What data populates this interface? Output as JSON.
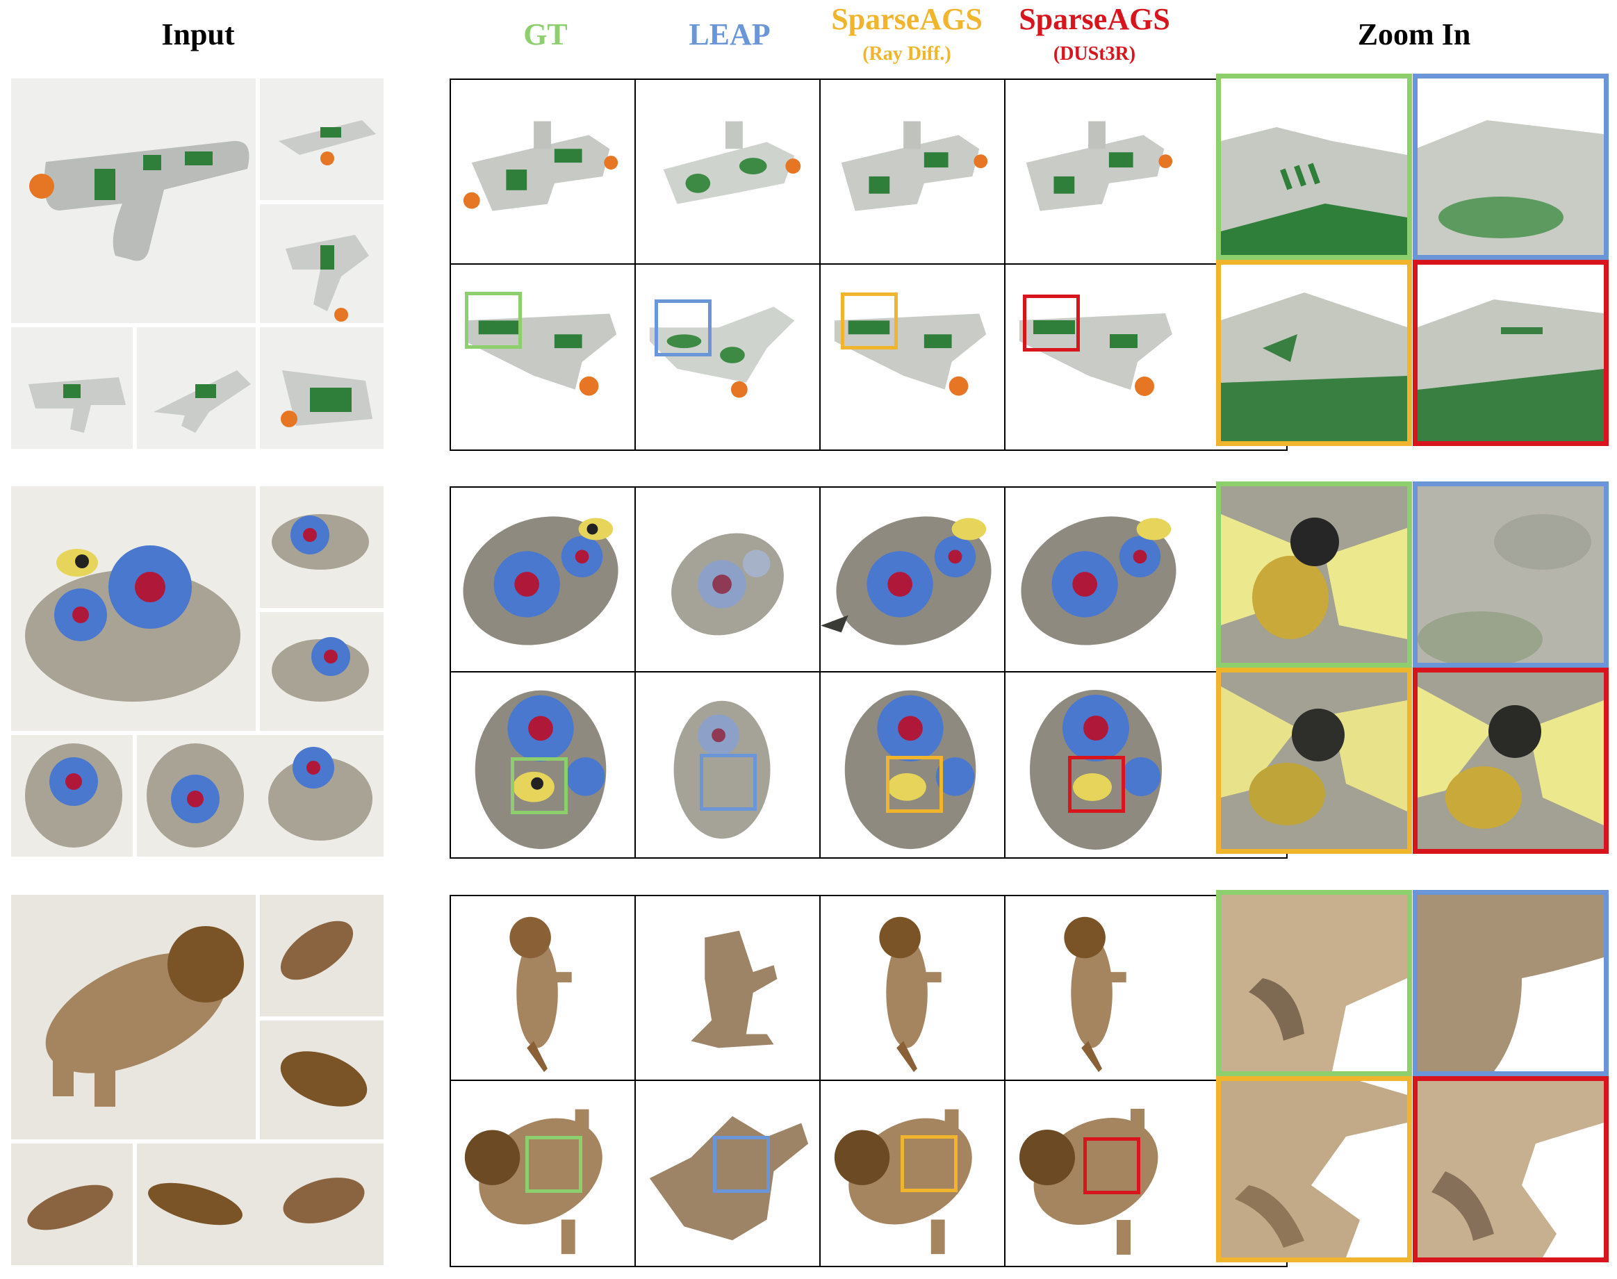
{
  "headers": {
    "input": "Input",
    "gt": "GT",
    "leap": "LEAP",
    "sparseags_ray": "SparseAGS",
    "sparseags_ray_sub": "(Ray Diff.)",
    "sparseags_dust": "SparseAGS",
    "sparseags_dust_sub": "(DUSt3R)",
    "zoom": "Zoom In"
  },
  "colors": {
    "gt": "#8dcf6d",
    "leap": "#6a96d8",
    "sparseags_ray": "#f0b52c",
    "sparseags_dust": "#d8141c",
    "text": "#000000"
  },
  "rows": [
    {
      "object": "toy-gun"
    },
    {
      "object": "flower-stone"
    },
    {
      "object": "lion-figurine"
    }
  ]
}
